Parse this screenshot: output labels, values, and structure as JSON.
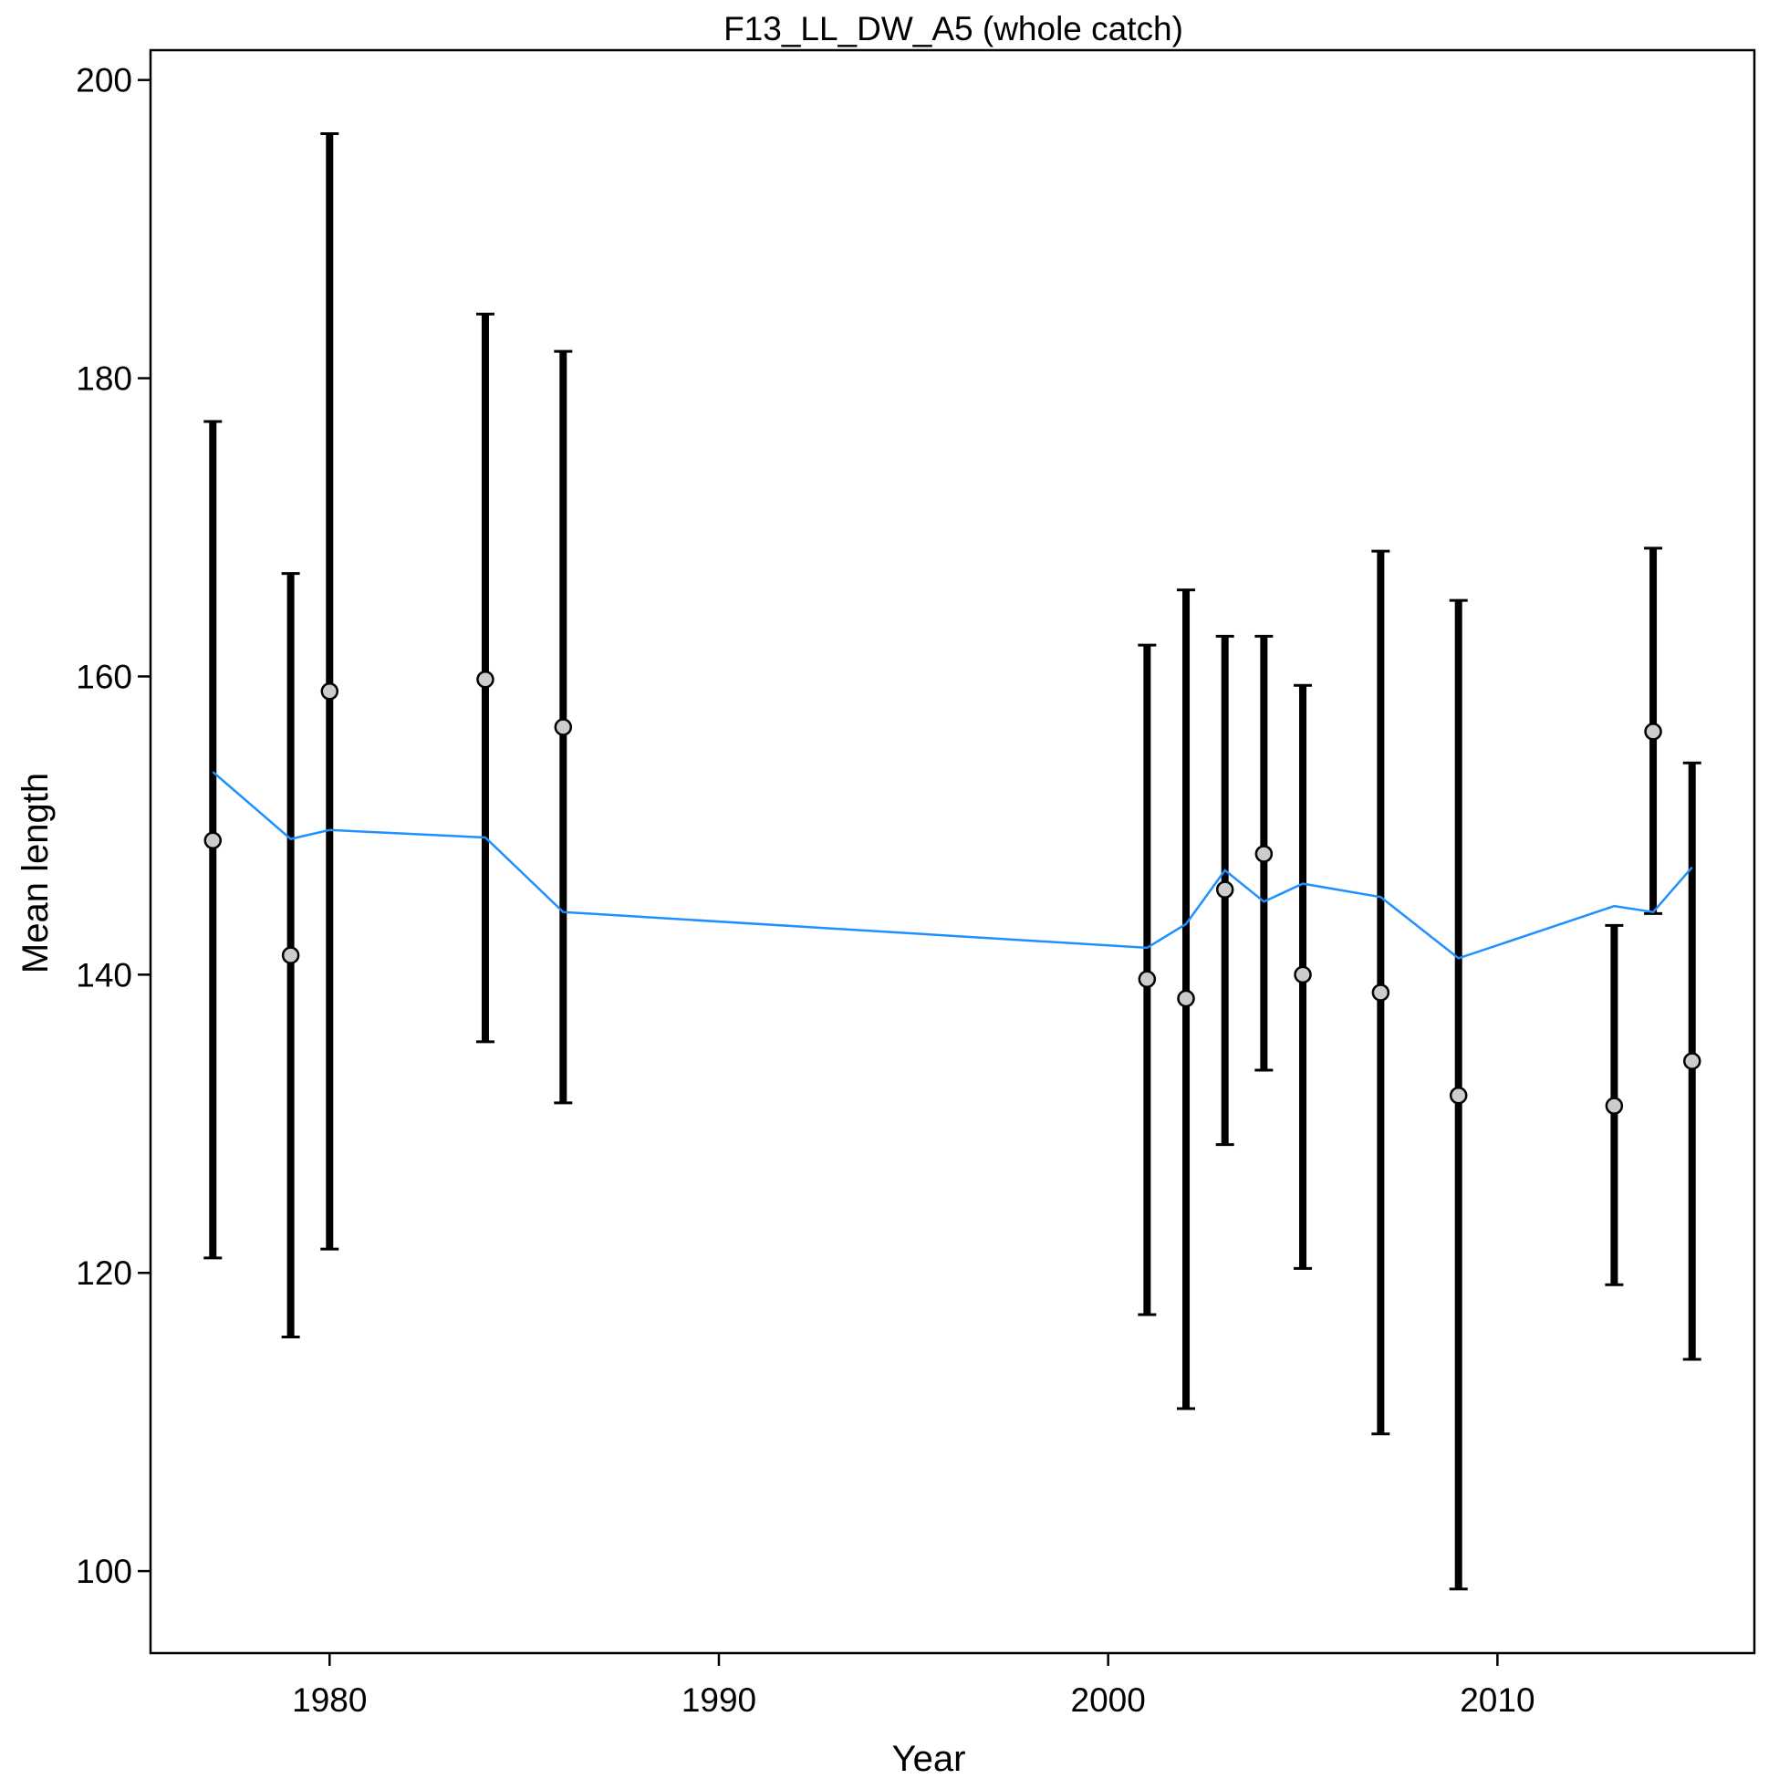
{
  "chart_data": {
    "type": "scatter",
    "title": "F13_LL_DW_A5 (whole catch)",
    "xlabel": "Year",
    "ylabel": "Mean length",
    "xlim": [
      1975.4,
      2016.6
    ],
    "ylim": [
      94.5,
      202.0
    ],
    "xticks": [
      1980,
      1990,
      2000,
      2010
    ],
    "yticks": [
      100,
      120,
      140,
      160,
      180,
      200
    ],
    "grid": false,
    "colors": {
      "observed_point_fill": "#cccccc",
      "error_bar": "#000000",
      "expected_line": "#1e90ff"
    },
    "series": [
      {
        "type": "errorbar-points",
        "x": [
          1977,
          1979,
          1980,
          1984,
          1986,
          2001,
          2002,
          2003,
          2004,
          2005,
          2007,
          2009,
          2013,
          2014,
          2015
        ],
        "y": [
          149.0,
          141.3,
          159.0,
          159.8,
          156.6,
          139.7,
          138.4,
          145.7,
          148.1,
          140.0,
          138.8,
          131.9,
          131.2,
          156.3,
          134.2
        ],
        "lower": [
          121.0,
          115.7,
          121.6,
          135.5,
          131.4,
          117.2,
          110.9,
          128.6,
          133.6,
          120.3,
          109.2,
          98.8,
          119.2,
          144.1,
          114.2
        ],
        "upper": [
          177.1,
          166.9,
          196.4,
          184.3,
          181.8,
          162.1,
          165.8,
          162.7,
          162.7,
          159.4,
          168.4,
          165.1,
          143.3,
          168.6,
          154.2
        ]
      },
      {
        "type": "line",
        "x": [
          1977,
          1979,
          1980,
          1984,
          1986,
          2001,
          2002,
          2003,
          2004,
          2005,
          2007,
          2009,
          2013,
          2014,
          2015
        ],
        "y": [
          153.6,
          149.1,
          149.7,
          149.2,
          144.2,
          141.8,
          143.4,
          147.0,
          144.9,
          146.1,
          145.2,
          141.1,
          144.6,
          144.2,
          147.2
        ]
      }
    ]
  }
}
